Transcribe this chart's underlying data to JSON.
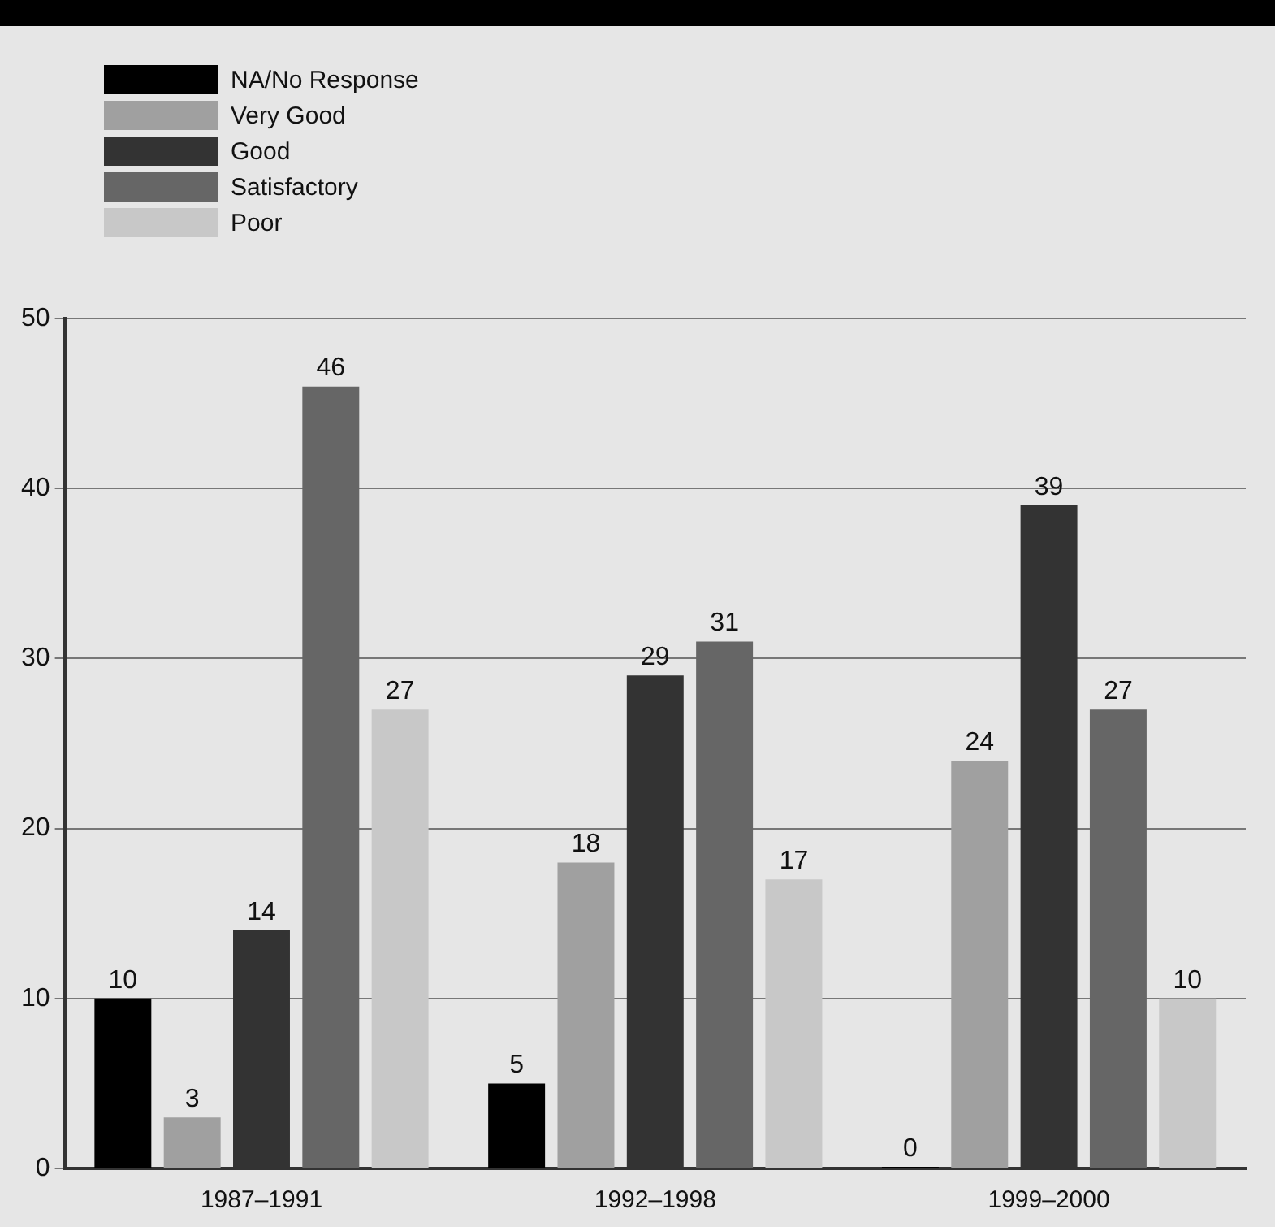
{
  "chart_data": {
    "type": "bar",
    "categories": [
      "1987–1991",
      "1992–1998",
      "1999–2000"
    ],
    "series": [
      {
        "name": "NA/No Response",
        "color": "#000000",
        "values": [
          10,
          5,
          0
        ]
      },
      {
        "name": "Very Good",
        "color": "#a0a0a0",
        "values": [
          3,
          18,
          24
        ]
      },
      {
        "name": "Good",
        "color": "#333333",
        "values": [
          14,
          29,
          39
        ]
      },
      {
        "name": "Satisfactory",
        "color": "#666666",
        "values": [
          46,
          31,
          27
        ]
      },
      {
        "name": "Poor",
        "color": "#c8c8c8",
        "values": [
          27,
          17,
          10
        ]
      }
    ],
    "ylim": [
      0,
      50
    ],
    "yticks": [
      0,
      10,
      20,
      30,
      40,
      50
    ],
    "grid": "y",
    "legend": "top left",
    "data_labels": true
  }
}
